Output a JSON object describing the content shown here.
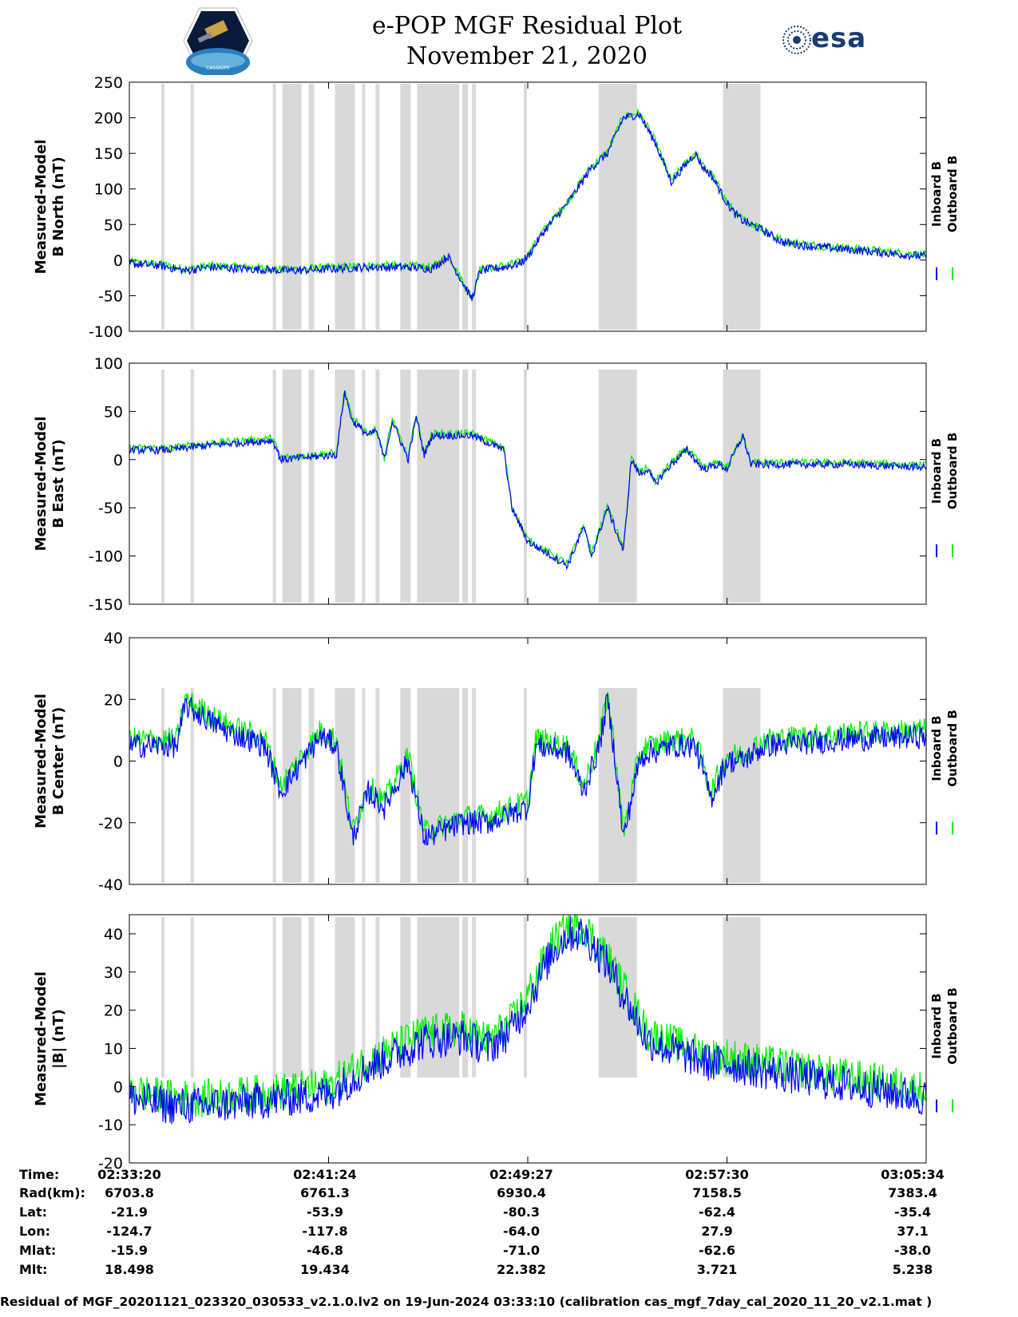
{
  "header": {
    "title_line1": "e-POP MGF Residual Plot",
    "title_line2": "November 21, 2020",
    "left_logo_text": "CASSIOPE",
    "right_logo_text": "esa"
  },
  "colors": {
    "inboard": "#0000ff",
    "outboard": "#00ee00",
    "gap": "#d9d9d9"
  },
  "chart_data": [
    {
      "type": "line",
      "ylabel_line1": "Measured-Model",
      "ylabel_line2": "B North (nT)",
      "ylim": [
        -100,
        250
      ],
      "yticks": [
        -100,
        -50,
        0,
        50,
        100,
        150,
        200,
        250
      ],
      "legend": [
        "Inboard B",
        "Outboard B"
      ],
      "noise": 6,
      "offset": 2,
      "series": {
        "x": [
          0,
          0.04,
          0.07,
          0.1,
          0.2,
          0.3,
          0.35,
          0.38,
          0.4,
          0.42,
          0.43,
          0.44,
          0.47,
          0.49,
          0.5,
          0.52,
          0.55,
          0.58,
          0.6,
          0.62,
          0.64,
          0.66,
          0.68,
          0.71,
          0.72,
          0.73,
          0.735,
          0.74,
          0.75,
          0.76,
          0.77,
          0.79,
          0.82,
          0.85,
          0.9,
          1.0
        ],
        "y": [
          -5,
          -8,
          -15,
          -10,
          -15,
          -10,
          -10,
          -12,
          5,
          -35,
          -55,
          -15,
          -10,
          -5,
          5,
          40,
          80,
          130,
          150,
          200,
          205,
          165,
          110,
          150,
          130,
          120,
          110,
          100,
          80,
          65,
          55,
          45,
          25,
          20,
          15,
          5
        ]
      }
    },
    {
      "type": "line",
      "ylabel_line1": "Measured-Model",
      "ylabel_line2": "B East (nT)",
      "ylim": [
        -150,
        100
      ],
      "yticks": [
        -150,
        -100,
        -50,
        0,
        50,
        100
      ],
      "legend": [
        "Inboard B",
        "Outboard B"
      ],
      "noise": 4,
      "offset": 2,
      "series": {
        "x": [
          0,
          0.05,
          0.1,
          0.18,
          0.19,
          0.26,
          0.27,
          0.28,
          0.3,
          0.31,
          0.32,
          0.33,
          0.34,
          0.35,
          0.36,
          0.37,
          0.38,
          0.4,
          0.43,
          0.47,
          0.48,
          0.5,
          0.52,
          0.55,
          0.57,
          0.58,
          0.6,
          0.62,
          0.63,
          0.64,
          0.65,
          0.66,
          0.68,
          0.7,
          0.72,
          0.74,
          0.75,
          0.77,
          0.78,
          0.8,
          0.82,
          0.85,
          0.9,
          1.0
        ],
        "y": [
          10,
          10,
          15,
          20,
          0,
          5,
          70,
          40,
          25,
          30,
          0,
          40,
          20,
          0,
          45,
          5,
          25,
          25,
          25,
          10,
          -50,
          -85,
          -95,
          -110,
          -70,
          -100,
          -50,
          -95,
          0,
          -15,
          -10,
          -25,
          -5,
          10,
          -10,
          -5,
          -10,
          25,
          -5,
          -5,
          -5,
          -5,
          -5,
          -8
        ]
      }
    },
    {
      "type": "line",
      "ylabel_line1": "Measured-Model",
      "ylabel_line2": "B Center (nT)",
      "ylim": [
        -40,
        40
      ],
      "yticks": [
        -40,
        -20,
        0,
        20,
        40
      ],
      "legend": [
        "Inboard B",
        "Outboard B"
      ],
      "noise": 4,
      "offset": 2,
      "series": {
        "x": [
          0,
          0.06,
          0.07,
          0.12,
          0.17,
          0.19,
          0.24,
          0.26,
          0.28,
          0.3,
          0.32,
          0.33,
          0.35,
          0.37,
          0.42,
          0.45,
          0.5,
          0.51,
          0.55,
          0.57,
          0.59,
          0.6,
          0.61,
          0.62,
          0.64,
          0.65,
          0.66,
          0.68,
          0.69,
          0.7,
          0.71,
          0.73,
          0.75,
          0.77,
          0.78,
          0.8,
          0.9,
          1.0
        ],
        "y": [
          5,
          5,
          18,
          10,
          5,
          -10,
          8,
          5,
          -25,
          -10,
          -15,
          -10,
          0,
          -25,
          -20,
          -20,
          -15,
          5,
          3,
          -10,
          5,
          20,
          0,
          -25,
          0,
          3,
          3,
          5,
          5,
          5,
          5,
          -12,
          0,
          0,
          2,
          5,
          7,
          8
        ]
      }
    },
    {
      "type": "line",
      "ylabel_line1": "Measured-Model",
      "ylabel_line2": "|B| (nT)",
      "ylim": [
        -20,
        45
      ],
      "yticks": [
        -20,
        -10,
        0,
        10,
        20,
        30,
        40
      ],
      "legend": [
        "Inboard B",
        "Outboard B"
      ],
      "noise": 5,
      "offset": 2,
      "series": {
        "x": [
          0,
          0.05,
          0.1,
          0.2,
          0.25,
          0.3,
          0.37,
          0.42,
          0.45,
          0.48,
          0.5,
          0.53,
          0.55,
          0.57,
          0.6,
          0.63,
          0.65,
          0.7,
          0.73,
          0.75,
          0.8,
          1.0
        ],
        "y": [
          -3,
          -5,
          -5,
          -3,
          -2,
          5,
          12,
          13,
          10,
          15,
          22,
          35,
          40,
          40,
          32,
          20,
          12,
          8,
          6,
          6,
          4,
          -3
        ]
      }
    }
  ],
  "gaps": [
    [
      0.04,
      0.044
    ],
    [
      0.077,
      0.081
    ],
    [
      0.18,
      0.184
    ],
    [
      0.192,
      0.216
    ],
    [
      0.225,
      0.232
    ],
    [
      0.258,
      0.283
    ],
    [
      0.292,
      0.296
    ],
    [
      0.309,
      0.314
    ],
    [
      0.34,
      0.353
    ],
    [
      0.361,
      0.414
    ],
    [
      0.418,
      0.425
    ],
    [
      0.43,
      0.435
    ],
    [
      0.495,
      0.499
    ],
    [
      0.589,
      0.637
    ],
    [
      0.745,
      0.792
    ]
  ],
  "orbit": {
    "labels": [
      "Time:",
      "Rad(km):",
      "Lat:",
      "Lon:",
      "Mlat:",
      "Mlt:"
    ],
    "columns": [
      {
        "time": "02:33:20",
        "rad": "6703.8",
        "lat": "-21.9",
        "lon": "-124.7",
        "mlat": "-15.9",
        "mlt": "18.498"
      },
      {
        "time": "02:41:24",
        "rad": "6761.3",
        "lat": "-53.9",
        "lon": "-117.8",
        "mlat": "-46.8",
        "mlt": "19.434"
      },
      {
        "time": "02:49:27",
        "rad": "6930.4",
        "lat": "-80.3",
        "lon": "-64.0",
        "mlat": "-71.0",
        "mlt": "22.382"
      },
      {
        "time": "02:57:30",
        "rad": "7158.5",
        "lat": "-62.4",
        "lon": "27.9",
        "mlat": "-62.6",
        "mlt": "3.721"
      },
      {
        "time": "03:05:34",
        "rad": "7383.4",
        "lat": "-35.4",
        "lon": "37.1",
        "mlat": "-38.0",
        "mlt": "5.238"
      }
    ]
  },
  "footer": "Residual of MGF_20201121_023320_030533_v2.1.0.lv2 on 19-Jun-2024 03:33:10 (calibration cas_mgf_7day_cal_2020_11_20_v2.1.mat )"
}
